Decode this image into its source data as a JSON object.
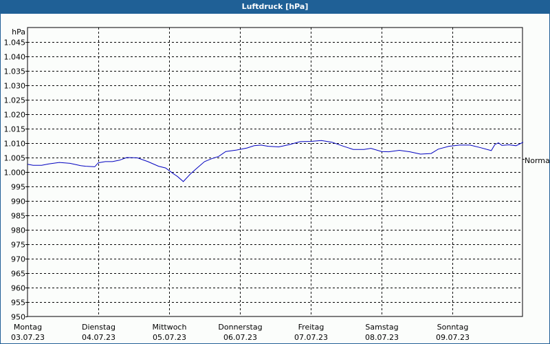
{
  "window": {
    "title": "Luftdruck [hPa]"
  },
  "chart_data": {
    "type": "line",
    "title": "Luftdruck [hPa]",
    "ylabel": "hPa",
    "xlabel": "",
    "ylim": [
      950,
      1050
    ],
    "grid": true,
    "yticks": [
      "1.045",
      "1.040",
      "1.035",
      "1.030",
      "1.025",
      "1.020",
      "1.015",
      "1.010",
      "1.005",
      "1.000",
      "995",
      "990",
      "985",
      "980",
      "975",
      "970",
      "965",
      "960",
      "955",
      "950"
    ],
    "ytick_values": [
      1045,
      1040,
      1035,
      1030,
      1025,
      1020,
      1015,
      1010,
      1005,
      1000,
      995,
      990,
      985,
      980,
      975,
      970,
      965,
      960,
      955,
      950
    ],
    "xticks": [
      {
        "day": "Montag",
        "date": "03.07.23"
      },
      {
        "day": "Dienstag",
        "date": "04.07.23"
      },
      {
        "day": "Mittwoch",
        "date": "05.07.23"
      },
      {
        "day": "Donnerstag",
        "date": "06.07.23"
      },
      {
        "day": "Freitag",
        "date": "07.07.23"
      },
      {
        "day": "Samstag",
        "date": "08.07.23"
      },
      {
        "day": "Sonntag",
        "date": "09.07.23"
      }
    ],
    "reference_label": "Normal",
    "reference_value": 1005,
    "series": [
      {
        "name": "Luftdruck",
        "color": "#0000c0",
        "x_days": [
          0,
          0.08,
          0.2,
          0.3,
          0.45,
          0.6,
          0.75,
          0.82,
          0.95,
          1.0,
          1.1,
          1.2,
          1.3,
          1.4,
          1.55,
          1.7,
          1.85,
          1.95,
          2.05,
          2.12,
          2.2,
          2.3,
          2.4,
          2.5,
          2.6,
          2.7,
          2.8,
          2.95,
          3.1,
          3.2,
          3.3,
          3.4,
          3.55,
          3.7,
          3.85,
          4.0,
          4.15,
          4.3,
          4.45,
          4.6,
          4.75,
          4.85,
          5.0,
          5.1,
          5.25,
          5.4,
          5.55,
          5.7,
          5.8,
          5.95,
          6.1,
          6.25,
          6.4,
          6.55,
          6.6,
          6.65,
          6.7,
          6.8,
          6.9,
          7.0
        ],
        "values": [
          1002.7,
          1002.3,
          1002.3,
          1002.8,
          1003.3,
          1003.0,
          1002.2,
          1002.0,
          1001.8,
          1003.2,
          1003.6,
          1003.6,
          1004.1,
          1005.0,
          1004.9,
          1003.6,
          1002.0,
          1001.4,
          999.6,
          998.4,
          996.7,
          999.3,
          1001.5,
          1003.6,
          1004.6,
          1005.4,
          1007.1,
          1007.6,
          1008.3,
          1009.1,
          1009.3,
          1008.9,
          1008.7,
          1009.5,
          1010.5,
          1010.6,
          1010.9,
          1010.3,
          1009.0,
          1007.8,
          1007.8,
          1008.2,
          1007.1,
          1007.0,
          1007.5,
          1007.0,
          1006.2,
          1006.4,
          1007.9,
          1008.9,
          1009.3,
          1009.3,
          1008.4,
          1007.4,
          1009.5,
          1010.1,
          1009.2,
          1009.4,
          1009.1,
          1010.3
        ]
      }
    ]
  }
}
